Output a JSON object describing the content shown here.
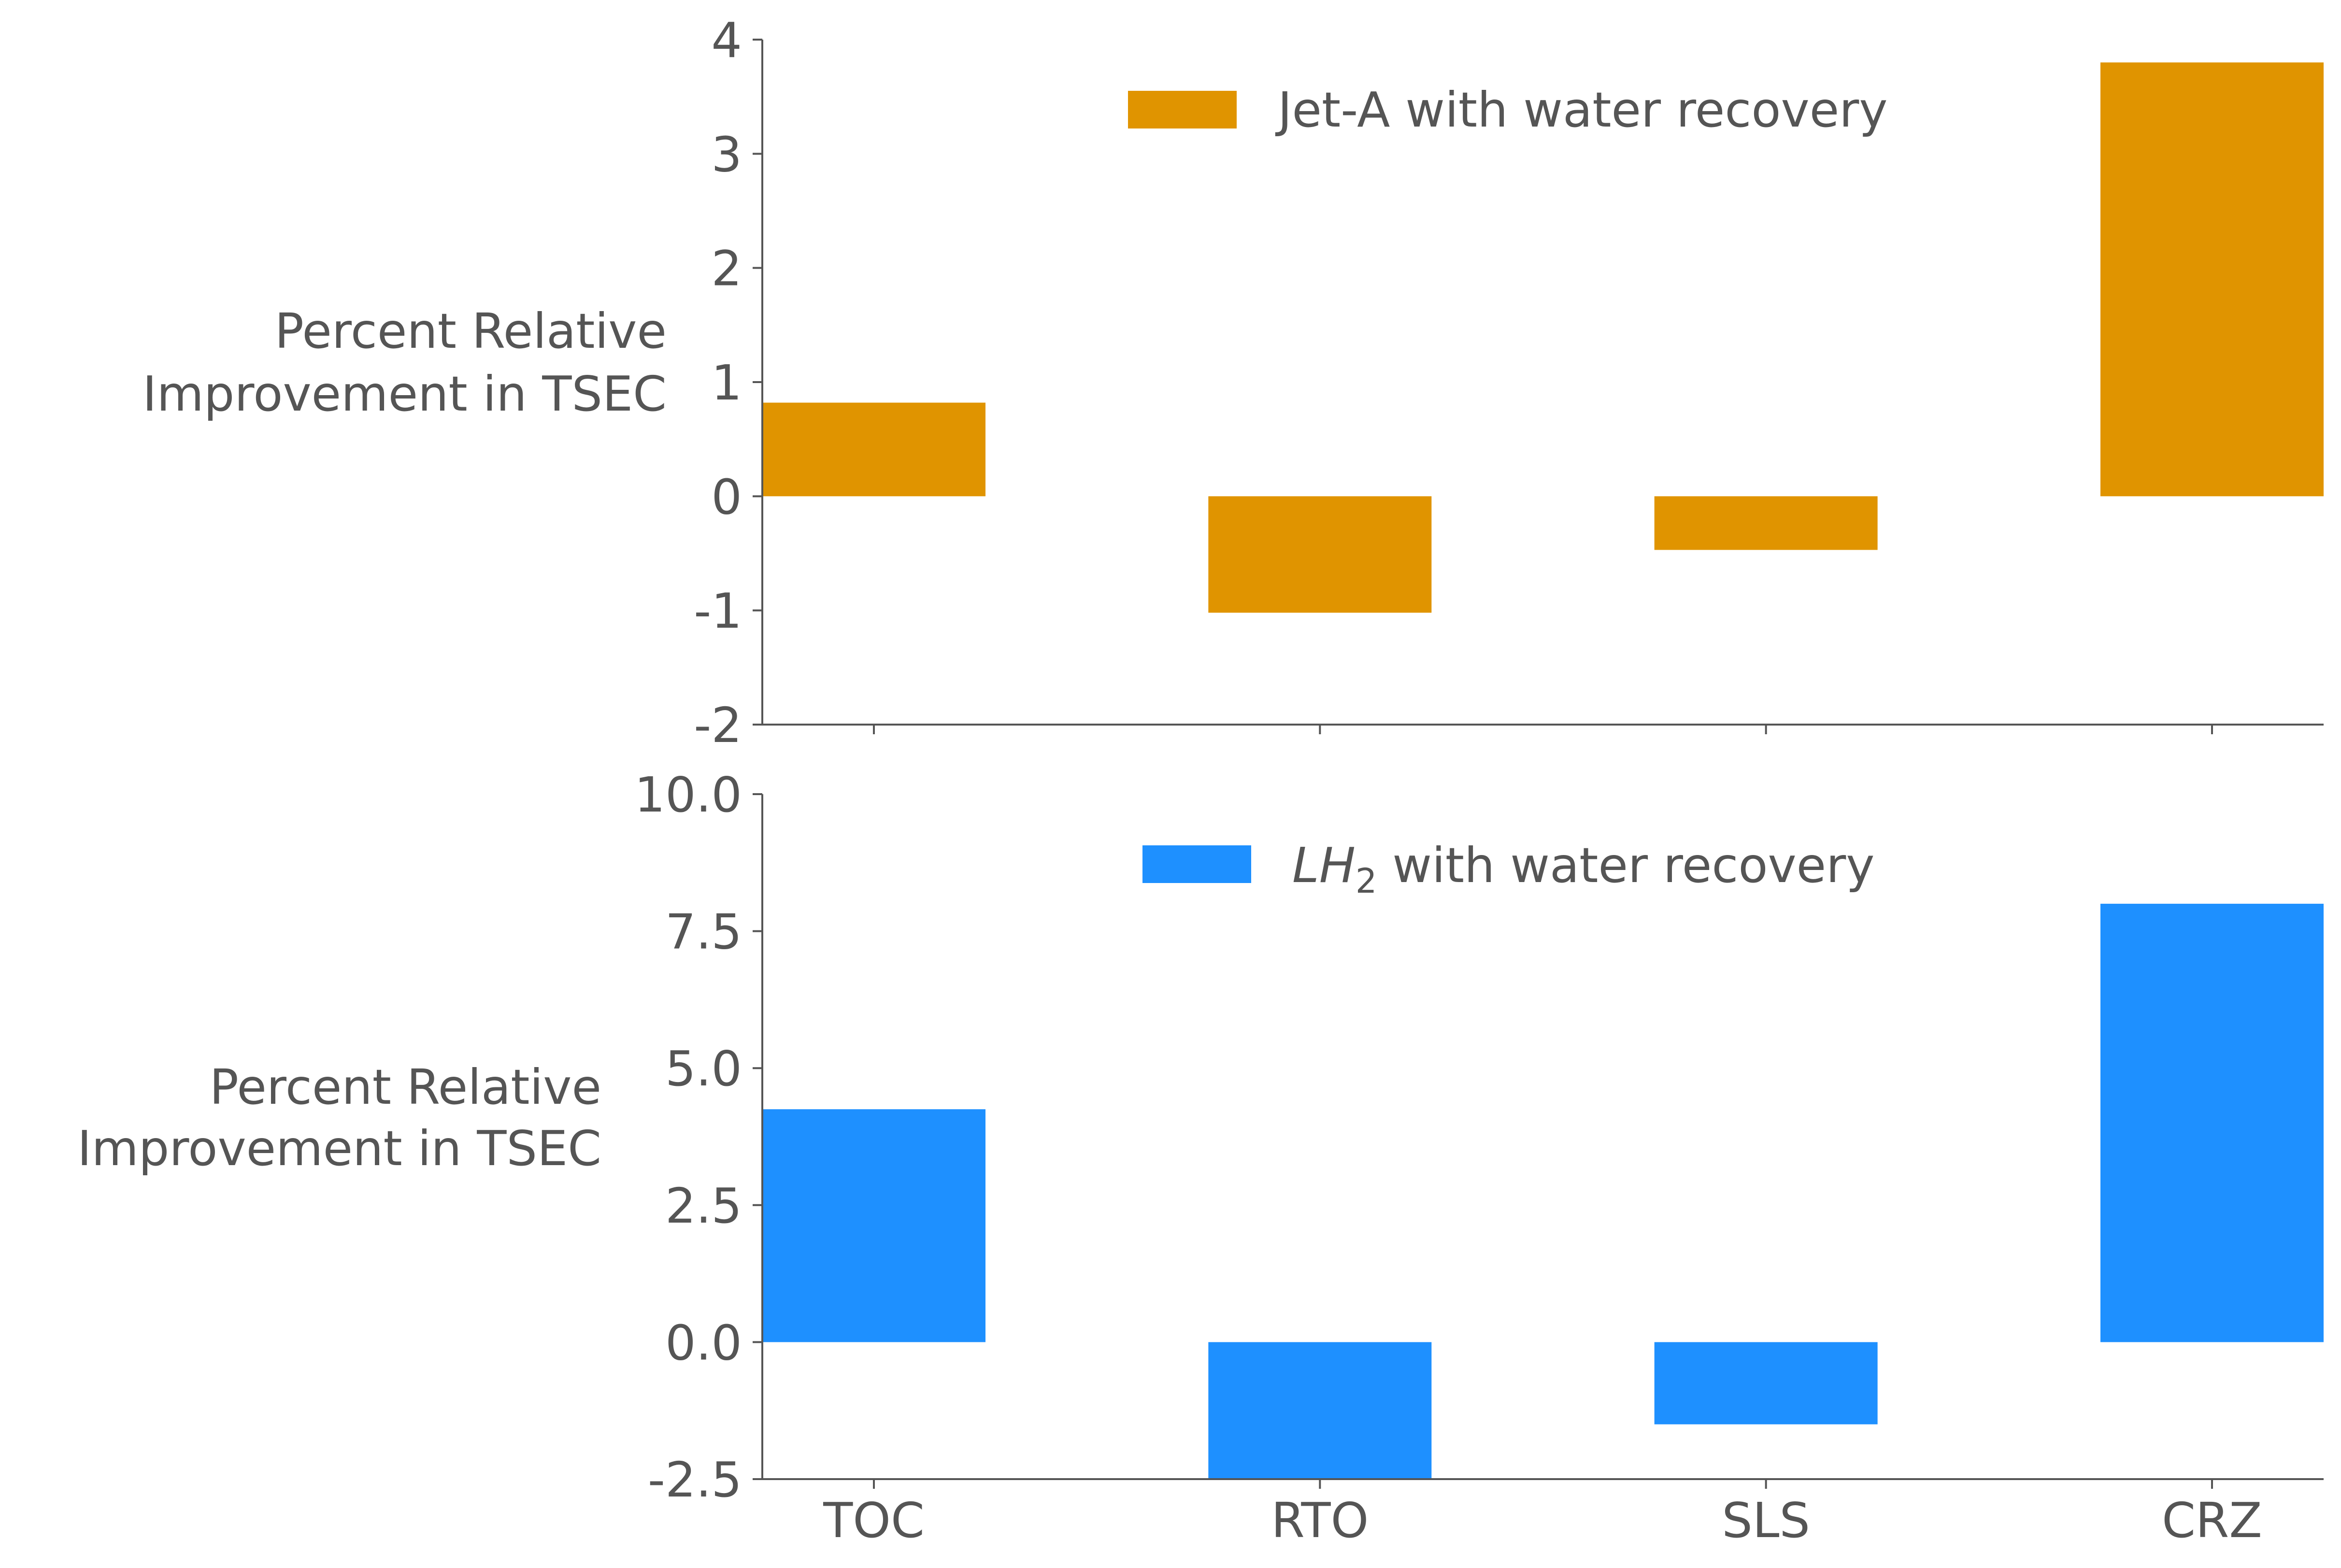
{
  "chart_data": [
    {
      "type": "bar",
      "categories": [
        "TOC",
        "RTO",
        "SLS",
        "CRZ"
      ],
      "series": [
        {
          "name": "Jet-A with water recovery",
          "values": [
            0.82,
            -1.02,
            -0.47,
            3.8
          ],
          "color": "#E09400"
        }
      ],
      "ylabel_line1": "Percent Relative",
      "ylabel_line2": "Improvement in TSEC",
      "ylim": [
        -2,
        4
      ],
      "yticks": [
        4,
        3,
        2,
        1,
        0,
        -1,
        -2
      ],
      "ytick_labels": [
        "4",
        "3",
        "2",
        "1",
        "0",
        "-1",
        "-2"
      ],
      "legend_placement": "top-center",
      "grid": false
    },
    {
      "type": "bar",
      "categories": [
        "TOC",
        "RTO",
        "SLS",
        "CRZ"
      ],
      "series": [
        {
          "name_italic": "LH",
          "name_sub": "2",
          "name_rest": " with water recovery",
          "values": [
            4.25,
            -2.5,
            -1.5,
            8.0
          ],
          "color": "#1E90FF"
        }
      ],
      "ylabel_line1": "Percent Relative",
      "ylabel_line2": "Improvement in TSEC",
      "ylim": [
        -2.5,
        10.0
      ],
      "yticks": [
        10.0,
        7.5,
        5.0,
        2.5,
        0.0,
        -2.5
      ],
      "ytick_labels": [
        "10.0",
        "7.5",
        "5.0",
        "2.5",
        "0.0",
        "-2.5"
      ],
      "legend_placement": "top-center",
      "grid": false
    }
  ]
}
